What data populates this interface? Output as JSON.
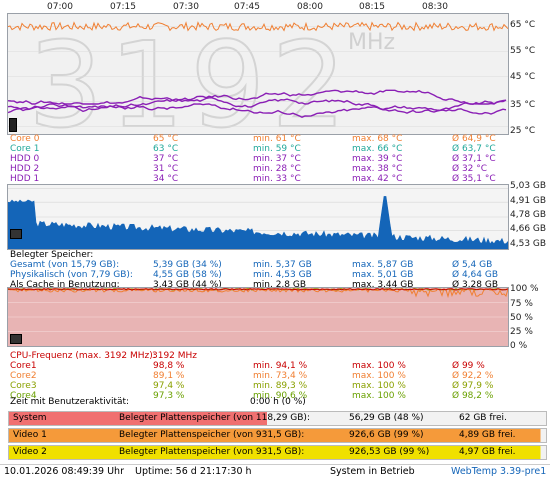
{
  "time_axis": [
    "07:00",
    "07:15",
    "07:30",
    "07:45",
    "08:00",
    "08:15",
    "08:30"
  ],
  "temp_chart": {
    "watermark": "3192",
    "watermark_unit": "MHz",
    "y_labels": [
      "65 °C",
      "55 °C",
      "45 °C",
      "35 °C",
      "25 °C"
    ],
    "colors": {
      "orange": "#f07f32",
      "purple": "#8a1fb5",
      "bg": "#f1f1f1"
    }
  },
  "temps": [
    {
      "name": "Core 0",
      "cur": "65 °C",
      "min": "min. 61 °C",
      "max": "max. 68 °C",
      "avg": "Ø 64,9 °C",
      "color": "#f07f32"
    },
    {
      "name": "Core 1",
      "cur": "63 °C",
      "min": "min. 59 °C",
      "max": "max. 66 °C",
      "avg": "Ø 63,7 °C",
      "color": "#22a89a"
    },
    {
      "name": "HDD 0",
      "cur": "37 °C",
      "min": "min. 37 °C",
      "max": "max. 39 °C",
      "avg": "Ø 37,1 °C",
      "color": "#8a1fb5"
    },
    {
      "name": "HDD 2",
      "cur": "31 °C",
      "min": "min. 28 °C",
      "max": "max. 38 °C",
      "avg": "Ø 32 °C",
      "color": "#8a1fb5"
    },
    {
      "name": "HDD 1",
      "cur": "34 °C",
      "min": "min. 33 °C",
      "max": "max. 42 °C",
      "avg": "Ø 35,1 °C",
      "color": "#8a1fb5"
    }
  ],
  "mem_chart": {
    "y_labels": [
      "5,03 GB",
      "4,91 GB",
      "4,78 GB",
      "4,66 GB",
      "4,53 GB"
    ],
    "color": "#1465b8"
  },
  "memory": {
    "title": "Belegter Speicher:",
    "rows": [
      {
        "name": "Gesamt (von 15,79 GB):",
        "cur": "5,39 GB (34 %)",
        "min": "min. 5,37 GB",
        "max": "max. 5,87 GB",
        "avg": "Ø 5,4 GB",
        "color": "#1465b8"
      },
      {
        "name": "Physikalisch (von 7,79 GB):",
        "cur": "4,55 GB (58 %)",
        "min": "min. 4,53 GB",
        "max": "max. 5,01 GB",
        "avg": "Ø 4,64 GB",
        "color": "#1465b8"
      },
      {
        "name": "Als Cache in Benutzung:",
        "cur": "3,43 GB (44 %)",
        "min": "min. 2,8 GB",
        "max": "max. 3,44 GB",
        "avg": "Ø 3,28 GB",
        "color": "#000000"
      }
    ]
  },
  "cpu_chart": {
    "y_labels": [
      "100 %",
      "75 %",
      "50 %",
      "25 %",
      "0 %"
    ],
    "fill": "#e8b4b4"
  },
  "cpu": {
    "freq_label": "CPU-Frequenz (max. 3192 MHz):",
    "freq_value": "3192 MHz",
    "rows": [
      {
        "name": "Core1",
        "cur": "98,8 %",
        "min": "min. 94,1 %",
        "max": "max. 100 %",
        "avg": "Ø 99 %",
        "color": "#c80000"
      },
      {
        "name": "Core2",
        "cur": "89,1 %",
        "min": "min. 73,4 %",
        "max": "max. 100 %",
        "avg": "Ø 92,2 %",
        "color": "#f07f32"
      },
      {
        "name": "Core3",
        "cur": "97,4 %",
        "min": "min. 89,3 %",
        "max": "max. 100 %",
        "avg": "Ø 97,9 %",
        "color": "#8aa000"
      },
      {
        "name": "Core4",
        "cur": "97,3 %",
        "min": "min. 90,6 %",
        "max": "max. 100 %",
        "avg": "Ø 98,2 %",
        "color": "#6aa000"
      }
    ],
    "idle_label": "Zeit mit Benutzeraktivität:",
    "idle_value": "0:00 h (0 %)"
  },
  "disks": [
    {
      "name": "System",
      "desc": "Belegter Plattenspeicher (von 118,29 GB):",
      "used": "56,29 GB (48 %)",
      "free": "62 GB frei.",
      "bg": "#f07070",
      "fill_pct": 48
    },
    {
      "name": "Video 1",
      "desc": "Belegter Plattenspeicher (von 931,5 GB):",
      "used": "926,6 GB (99 %)",
      "free": "4,89 GB frei.",
      "bg": "#f59a3a",
      "fill_pct": 99
    },
    {
      "name": "Video 2",
      "desc": "Belegter Plattenspeicher (von 931,5 GB):",
      "used": "926,53 GB (99 %)",
      "free": "4,97 GB frei.",
      "bg": "#f0e000",
      "fill_pct": 99
    }
  ],
  "footer": {
    "datetime": "10.01.2026 08:49:39 Uhr",
    "uptime": "Uptime: 56 d 21:17:30 h",
    "status": "System in Betrieb",
    "app": "WebTemp 3.39-pre1"
  }
}
